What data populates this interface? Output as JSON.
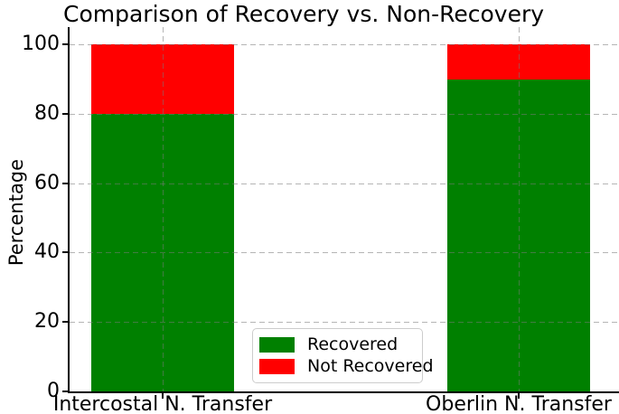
{
  "figure": {
    "title": "Comparison of Recovery vs. Non-Recovery",
    "background": "#ffffff"
  },
  "chart_data": {
    "type": "bar",
    "stacked": true,
    "title": "Comparison of Recovery vs. Non-Recovery",
    "xlabel": "",
    "ylabel": "Percentage",
    "categories": [
      "Intercostal N. Transfer",
      "Oberlin N. Transfer"
    ],
    "series": [
      {
        "name": "Recovered",
        "color": "#008000",
        "values": [
          80,
          90
        ]
      },
      {
        "name": "Not Recovered",
        "color": "#ff0000",
        "values": [
          20,
          10
        ]
      }
    ],
    "ylim": [
      0,
      105
    ],
    "yticks": [
      0,
      20,
      40,
      60,
      80,
      100
    ],
    "grid": true,
    "grid_style": "dashed",
    "legend_position": "lower center"
  },
  "legend": {
    "items": [
      {
        "label": "Recovered",
        "color": "#008000"
      },
      {
        "label": "Not Recovered",
        "color": "#ff0000"
      }
    ]
  },
  "colors": {
    "recovered": "#008000",
    "not_recovered": "#ff0000",
    "grid": "#b9b9b9",
    "axis": "#000000",
    "legend_border": "#cccccc"
  }
}
